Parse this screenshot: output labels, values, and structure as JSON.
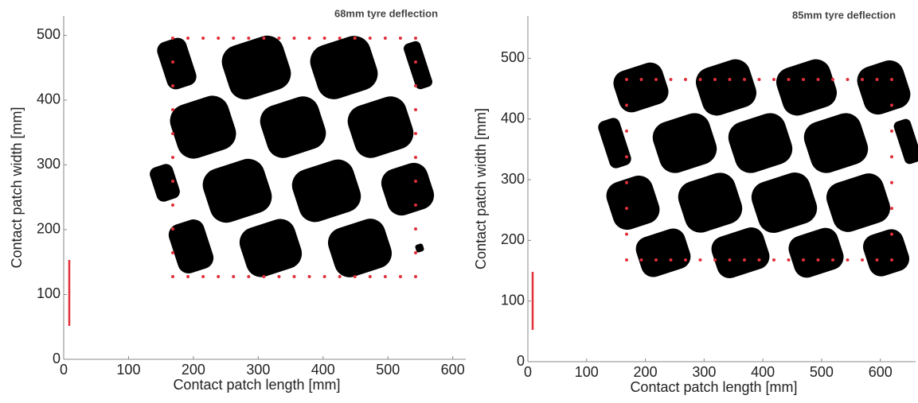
{
  "chart_data": [
    {
      "type": "patch",
      "title": "68mm tyre deflection",
      "xlabel": "Contact patch length [mm]",
      "ylabel": "Contact patch width [mm]",
      "xlim": [
        0,
        620
      ],
      "ylim": [
        0,
        530
      ],
      "xticks": [
        0,
        100,
        200,
        300,
        400,
        500,
        600
      ],
      "yticks": [
        0,
        100,
        200,
        300,
        400,
        500
      ]
    },
    {
      "type": "patch",
      "title": "85mm tyre deflection",
      "xlabel": "Contact patch length [mm]",
      "ylabel": "Contact patch width [mm]",
      "xlim": [
        0,
        660
      ],
      "ylim": [
        0,
        570
      ],
      "xticks": [
        0,
        100,
        200,
        300,
        400,
        500,
        600
      ],
      "yticks": [
        0,
        100,
        200,
        300,
        400,
        500
      ]
    }
  ]
}
